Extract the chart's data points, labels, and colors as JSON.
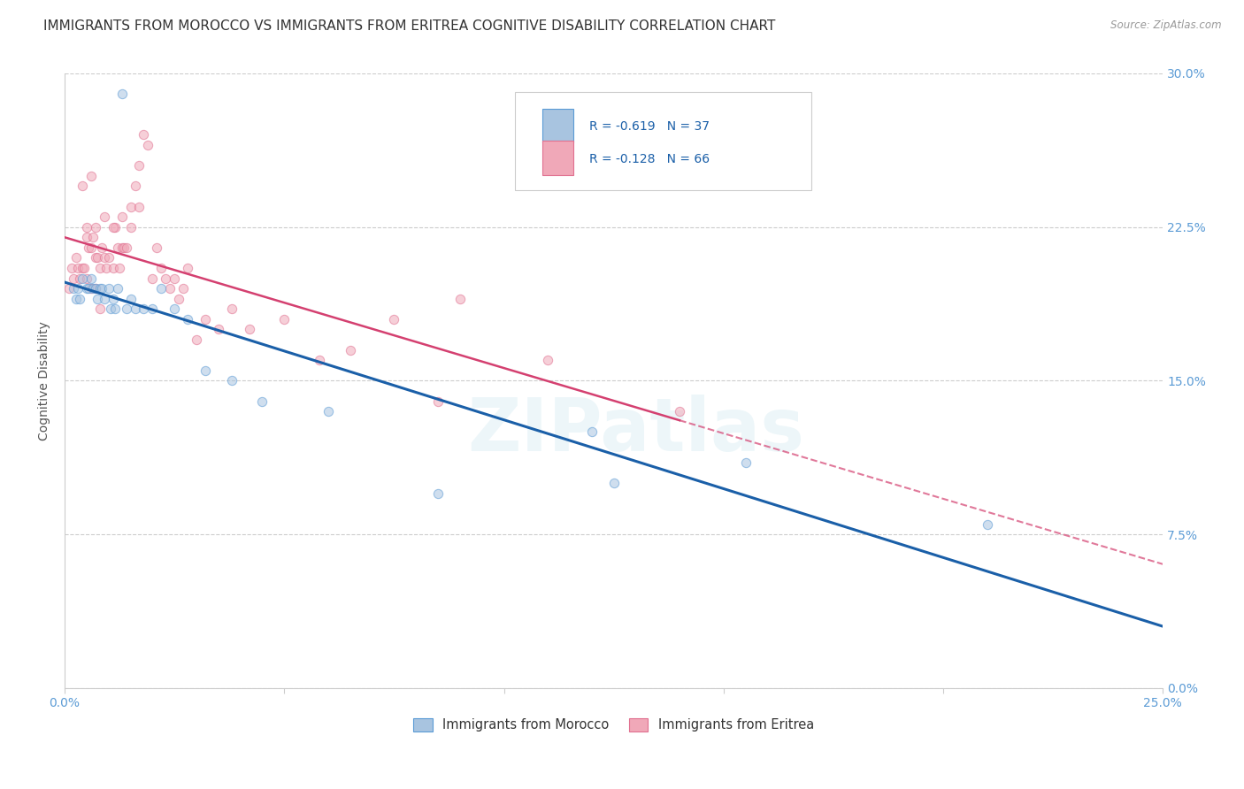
{
  "title": "IMMIGRANTS FROM MOROCCO VS IMMIGRANTS FROM ERITREA COGNITIVE DISABILITY CORRELATION CHART",
  "source": "Source: ZipAtlas.com",
  "ylabel": "Cognitive Disability",
  "x_tick_labels": [
    "0.0%",
    "",
    "",
    "",
    "",
    "25.0%"
  ],
  "x_tick_vals": [
    0.0,
    5.0,
    10.0,
    15.0,
    20.0,
    25.0
  ],
  "y_tick_labels_right": [
    "0.0%",
    "7.5%",
    "15.0%",
    "22.5%",
    "30.0%"
  ],
  "y_tick_vals": [
    0.0,
    7.5,
    15.0,
    22.5,
    30.0
  ],
  "xlim": [
    0.0,
    25.0
  ],
  "ylim": [
    0.0,
    30.0
  ],
  "morocco_color": "#a8c4e0",
  "eritrea_color": "#f0a8b8",
  "morocco_edge_color": "#5b9bd5",
  "eritrea_edge_color": "#e07090",
  "regression_morocco_color": "#1a5fa8",
  "regression_eritrea_color": "#d44070",
  "legend_morocco_label": "R = -0.619   N = 37",
  "legend_eritrea_label": "R = -0.128   N = 66",
  "bottom_legend_morocco": "Immigrants from Morocco",
  "bottom_legend_eritrea": "Immigrants from Eritrea",
  "morocco_x": [
    1.3,
    0.2,
    0.25,
    0.3,
    0.35,
    0.4,
    0.5,
    0.55,
    0.6,
    0.65,
    0.7,
    0.75,
    0.8,
    0.85,
    0.9,
    1.0,
    1.05,
    1.1,
    1.15,
    1.2,
    1.4,
    1.5,
    1.6,
    1.8,
    2.0,
    2.2,
    2.5,
    2.8,
    3.2,
    3.8,
    4.5,
    6.0,
    8.5,
    12.5,
    15.5,
    21.0,
    12.0
  ],
  "morocco_y": [
    29.0,
    19.5,
    19.0,
    19.5,
    19.0,
    20.0,
    19.5,
    19.5,
    20.0,
    19.5,
    19.5,
    19.0,
    19.5,
    19.5,
    19.0,
    19.5,
    18.5,
    19.0,
    18.5,
    19.5,
    18.5,
    19.0,
    18.5,
    18.5,
    18.5,
    19.5,
    18.5,
    18.0,
    15.5,
    15.0,
    14.0,
    13.5,
    9.5,
    10.0,
    11.0,
    8.0,
    12.5
  ],
  "eritrea_x": [
    0.1,
    0.15,
    0.2,
    0.25,
    0.3,
    0.35,
    0.4,
    0.45,
    0.5,
    0.55,
    0.6,
    0.65,
    0.7,
    0.75,
    0.8,
    0.85,
    0.9,
    0.95,
    1.0,
    1.1,
    1.15,
    1.2,
    1.25,
    1.3,
    1.35,
    1.4,
    1.5,
    1.6,
    1.7,
    1.8,
    1.9,
    2.0,
    2.1,
    2.2,
    2.3,
    2.4,
    2.5,
    2.6,
    2.7,
    2.8,
    3.0,
    3.2,
    3.5,
    3.8,
    4.2,
    5.0,
    5.8,
    6.5,
    7.5,
    9.0,
    11.0,
    0.5,
    0.6,
    0.7,
    0.8,
    0.5,
    0.7,
    0.9,
    1.1,
    1.3,
    1.5,
    1.7,
    8.5,
    14.0,
    0.4,
    0.6
  ],
  "eritrea_y": [
    19.5,
    20.5,
    20.0,
    21.0,
    20.5,
    20.0,
    20.5,
    20.5,
    22.0,
    21.5,
    21.5,
    22.0,
    21.0,
    21.0,
    20.5,
    21.5,
    21.0,
    20.5,
    21.0,
    20.5,
    22.5,
    21.5,
    20.5,
    21.5,
    21.5,
    21.5,
    23.5,
    24.5,
    25.5,
    27.0,
    26.5,
    20.0,
    21.5,
    20.5,
    20.0,
    19.5,
    20.0,
    19.0,
    19.5,
    20.5,
    17.0,
    18.0,
    17.5,
    18.5,
    17.5,
    18.0,
    16.0,
    16.5,
    18.0,
    19.0,
    16.0,
    20.0,
    19.5,
    19.5,
    18.5,
    22.5,
    22.5,
    23.0,
    22.5,
    23.0,
    22.5,
    23.5,
    14.0,
    13.5,
    24.5,
    25.0
  ],
  "watermark": "ZIPatlas",
  "background_color": "#ffffff",
  "grid_color": "#cccccc",
  "title_fontsize": 11,
  "axis_label_fontsize": 10,
  "tick_fontsize": 10,
  "marker_size": 55,
  "marker_alpha": 0.55
}
